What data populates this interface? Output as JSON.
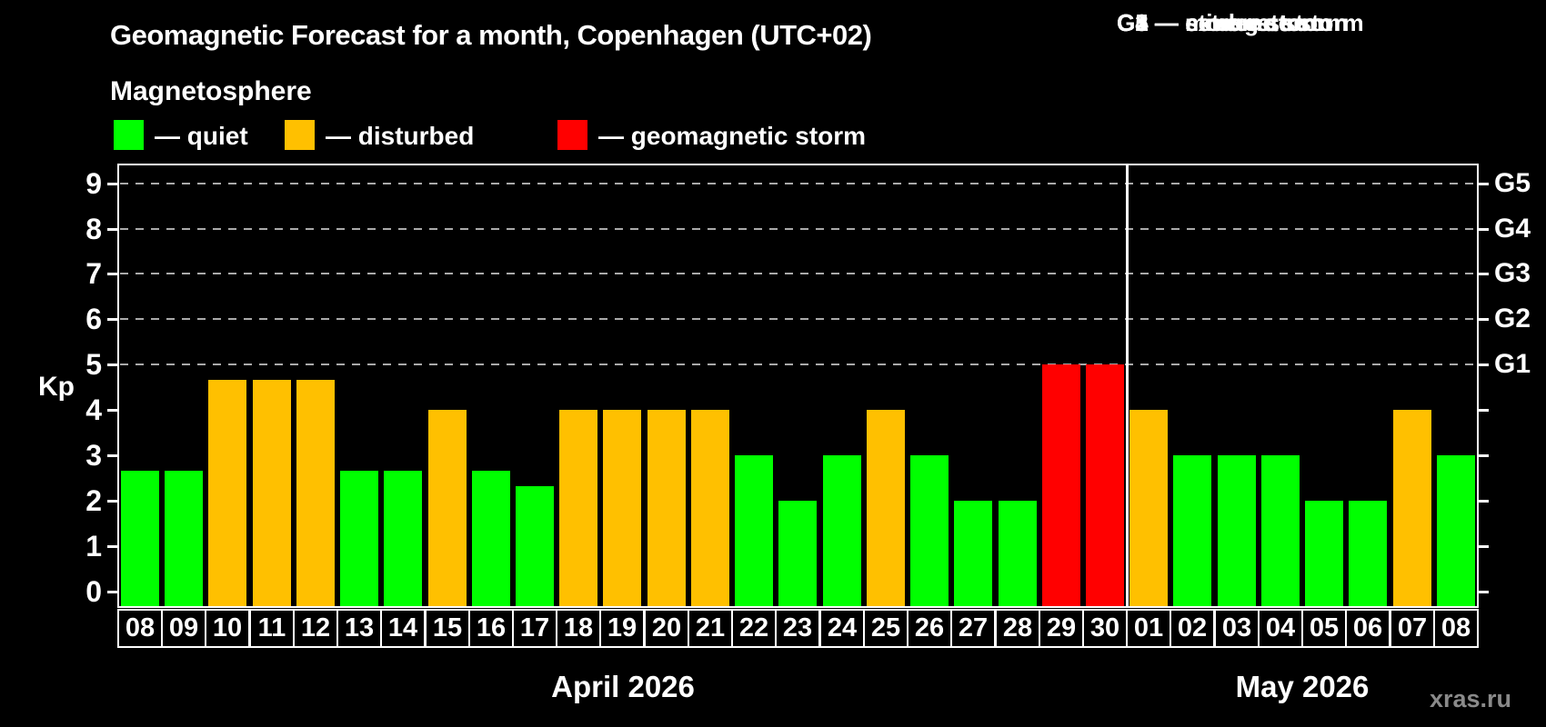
{
  "title": "Geomagnetic Forecast for a month, Copenhagen (UTC+02)",
  "legend": {
    "title": "Magnetosphere",
    "items": [
      {
        "key": "quiet",
        "label": "— quiet",
        "color": "#00ff00"
      },
      {
        "key": "disturbed",
        "label": "— disturbed",
        "color": "#ffc000"
      },
      {
        "key": "storm",
        "label": "— geomagnetic storm",
        "color": "#ff0000"
      }
    ]
  },
  "storm_scale": {
    "lines": [
      "G1 — minor storm",
      "G2 — moderate storm",
      "G3 — strong storm",
      "G4 — severe storm",
      "G5 — extreme storm"
    ]
  },
  "watermark": "xras.ru",
  "colors": {
    "background": "#000000",
    "axis": "#ffffff",
    "grid": "#aaaaaa",
    "text": "#ffffff",
    "watermark": "#8a8a8a",
    "quiet": "#00ff00",
    "disturbed": "#ffc000",
    "storm": "#ff0000"
  },
  "chart_data": {
    "type": "bar",
    "title": "Geomagnetic Forecast for a month, Copenhagen (UTC+02)",
    "ylabel": "Kp",
    "ylim": [
      0,
      9
    ],
    "yticks": [
      0,
      1,
      2,
      3,
      4,
      5,
      6,
      7,
      8,
      9
    ],
    "gridlines_at": [
      5,
      6,
      7,
      8,
      9
    ],
    "grid": true,
    "legend_position": "top-left",
    "right_axis": [
      {
        "value": 5,
        "label": "G1"
      },
      {
        "value": 6,
        "label": "G2"
      },
      {
        "value": 7,
        "label": "G3"
      },
      {
        "value": 8,
        "label": "G4"
      },
      {
        "value": 9,
        "label": "G5"
      }
    ],
    "sections": [
      {
        "label": "April 2026",
        "days": [
          {
            "date": "08",
            "kp": 2.67,
            "status": "quiet"
          },
          {
            "date": "09",
            "kp": 2.67,
            "status": "quiet"
          },
          {
            "date": "10",
            "kp": 4.67,
            "status": "disturbed"
          },
          {
            "date": "11",
            "kp": 4.67,
            "status": "disturbed"
          },
          {
            "date": "12",
            "kp": 4.67,
            "status": "disturbed"
          },
          {
            "date": "13",
            "kp": 2.67,
            "status": "quiet"
          },
          {
            "date": "14",
            "kp": 2.67,
            "status": "quiet"
          },
          {
            "date": "15",
            "kp": 4,
            "status": "disturbed"
          },
          {
            "date": "16",
            "kp": 2.67,
            "status": "quiet"
          },
          {
            "date": "17",
            "kp": 2.33,
            "status": "quiet"
          },
          {
            "date": "18",
            "kp": 4,
            "status": "disturbed"
          },
          {
            "date": "19",
            "kp": 4,
            "status": "disturbed"
          },
          {
            "date": "20",
            "kp": 4,
            "status": "disturbed"
          },
          {
            "date": "21",
            "kp": 4,
            "status": "disturbed"
          },
          {
            "date": "22",
            "kp": 3,
            "status": "quiet"
          },
          {
            "date": "23",
            "kp": 2,
            "status": "quiet"
          },
          {
            "date": "24",
            "kp": 3,
            "status": "quiet"
          },
          {
            "date": "25",
            "kp": 4,
            "status": "disturbed"
          },
          {
            "date": "26",
            "kp": 3,
            "status": "quiet"
          },
          {
            "date": "27",
            "kp": 2,
            "status": "quiet"
          },
          {
            "date": "28",
            "kp": 2,
            "status": "quiet"
          },
          {
            "date": "29",
            "kp": 5,
            "status": "storm"
          },
          {
            "date": "30",
            "kp": 5,
            "status": "storm"
          }
        ]
      },
      {
        "label": "May 2026",
        "days": [
          {
            "date": "01",
            "kp": 4,
            "status": "disturbed"
          },
          {
            "date": "02",
            "kp": 3,
            "status": "quiet"
          },
          {
            "date": "03",
            "kp": 3,
            "status": "quiet"
          },
          {
            "date": "04",
            "kp": 3,
            "status": "quiet"
          },
          {
            "date": "05",
            "kp": 2,
            "status": "quiet"
          },
          {
            "date": "06",
            "kp": 2,
            "status": "quiet"
          },
          {
            "date": "07",
            "kp": 4,
            "status": "disturbed"
          },
          {
            "date": "08",
            "kp": 3,
            "status": "quiet"
          }
        ]
      }
    ]
  }
}
